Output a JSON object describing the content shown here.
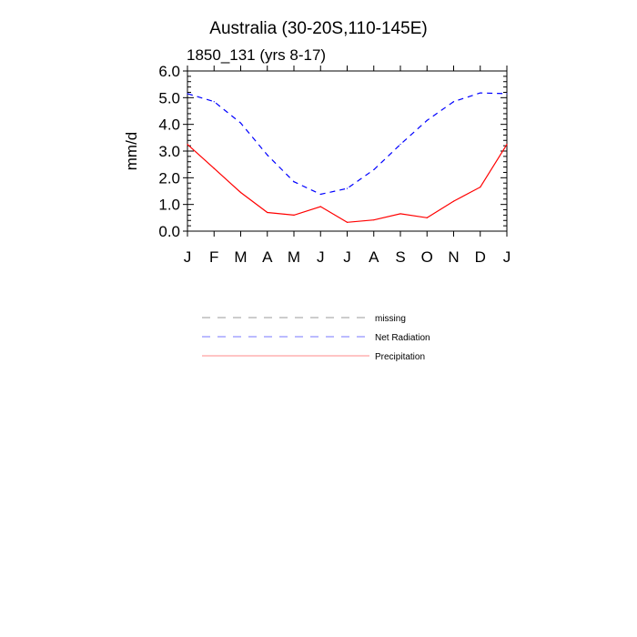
{
  "chart_data": {
    "type": "line",
    "title": "Australia (30-20S,110-145E)",
    "subtitle": "1850_131 (yrs 8-17)",
    "ylabel": "mm/d",
    "xlabel": "",
    "categories": [
      "J",
      "F",
      "M",
      "A",
      "M",
      "J",
      "J",
      "A",
      "S",
      "O",
      "N",
      "D",
      "J"
    ],
    "ylim": [
      0,
      6
    ],
    "yticks": [
      "0.0",
      "1.0",
      "2.0",
      "3.0",
      "4.0",
      "5.0",
      "6.0"
    ],
    "grid": false,
    "legend_position": "below",
    "series": [
      {
        "name": "Net Radiation",
        "style": "dashed",
        "color": "#0000ff",
        "values": [
          5.15,
          4.85,
          4.05,
          2.85,
          1.85,
          1.38,
          1.6,
          2.3,
          3.25,
          4.15,
          4.85,
          5.18,
          5.15
        ]
      },
      {
        "name": "Precipitation",
        "style": "solid",
        "color": "#ff0000",
        "values": [
          3.25,
          2.35,
          1.45,
          0.7,
          0.6,
          0.92,
          0.33,
          0.42,
          0.65,
          0.5,
          1.12,
          1.65,
          3.25
        ]
      }
    ],
    "legend": [
      {
        "label": "missing",
        "style": "dashed",
        "color": "#999999"
      },
      {
        "label": "Net Radiation",
        "style": "dashed",
        "color": "#7777ff"
      },
      {
        "label": "Precipitation",
        "style": "solid",
        "color": "#ff8888"
      }
    ]
  }
}
